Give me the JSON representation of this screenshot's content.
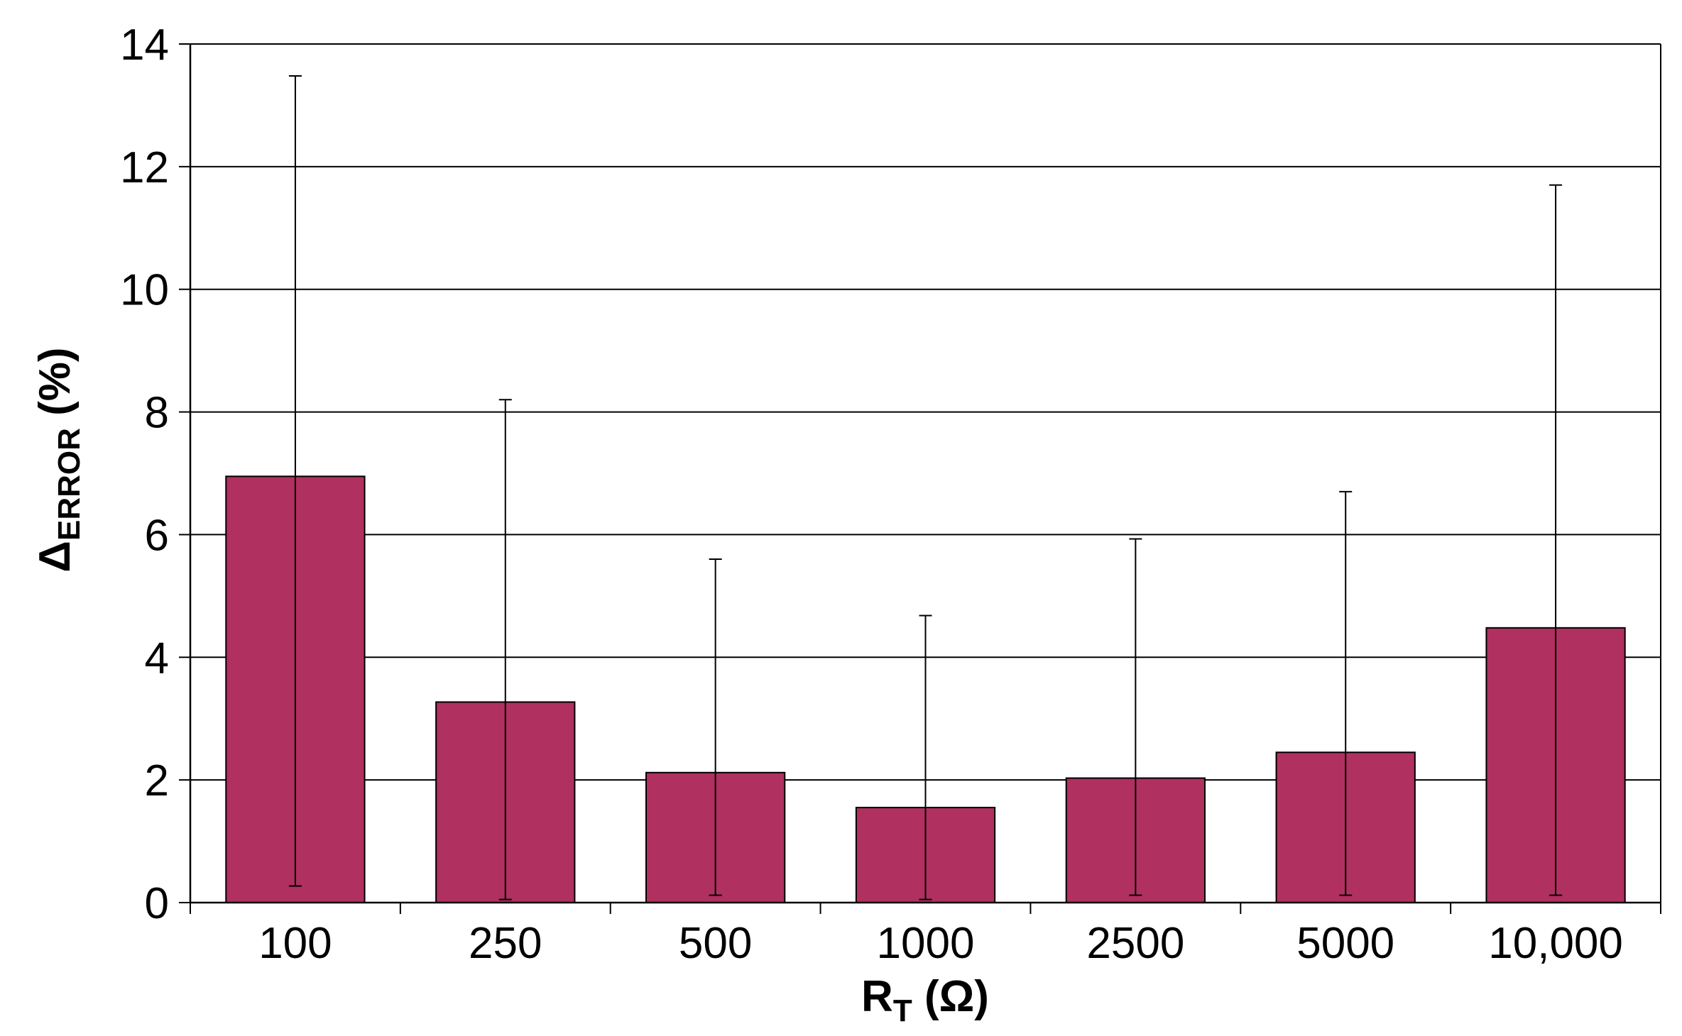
{
  "chart_data": {
    "type": "bar",
    "title": "",
    "xlabel": {
      "main": "R",
      "sub": "T",
      "suffix": " (Ω)"
    },
    "ylabel": {
      "main": "Δ",
      "sub": "ERROR",
      "suffix": " (%)"
    },
    "categories": [
      "100",
      "250",
      "500",
      "1000",
      "2500",
      "5000",
      "10,000"
    ],
    "values": [
      6.95,
      3.27,
      2.12,
      1.55,
      2.03,
      2.45,
      4.48
    ],
    "error_low": [
      0.27,
      0.05,
      0.12,
      0.05,
      0.12,
      0.12,
      0.12
    ],
    "error_high": [
      13.48,
      8.2,
      5.6,
      4.68,
      5.93,
      6.7,
      11.7
    ],
    "ylim": [
      0,
      14
    ],
    "yticks": [
      0,
      2,
      4,
      6,
      8,
      10,
      12,
      14
    ],
    "grid": true,
    "legend": "none",
    "bar_color": "#B03060",
    "bar_edge_color": "#000000"
  }
}
